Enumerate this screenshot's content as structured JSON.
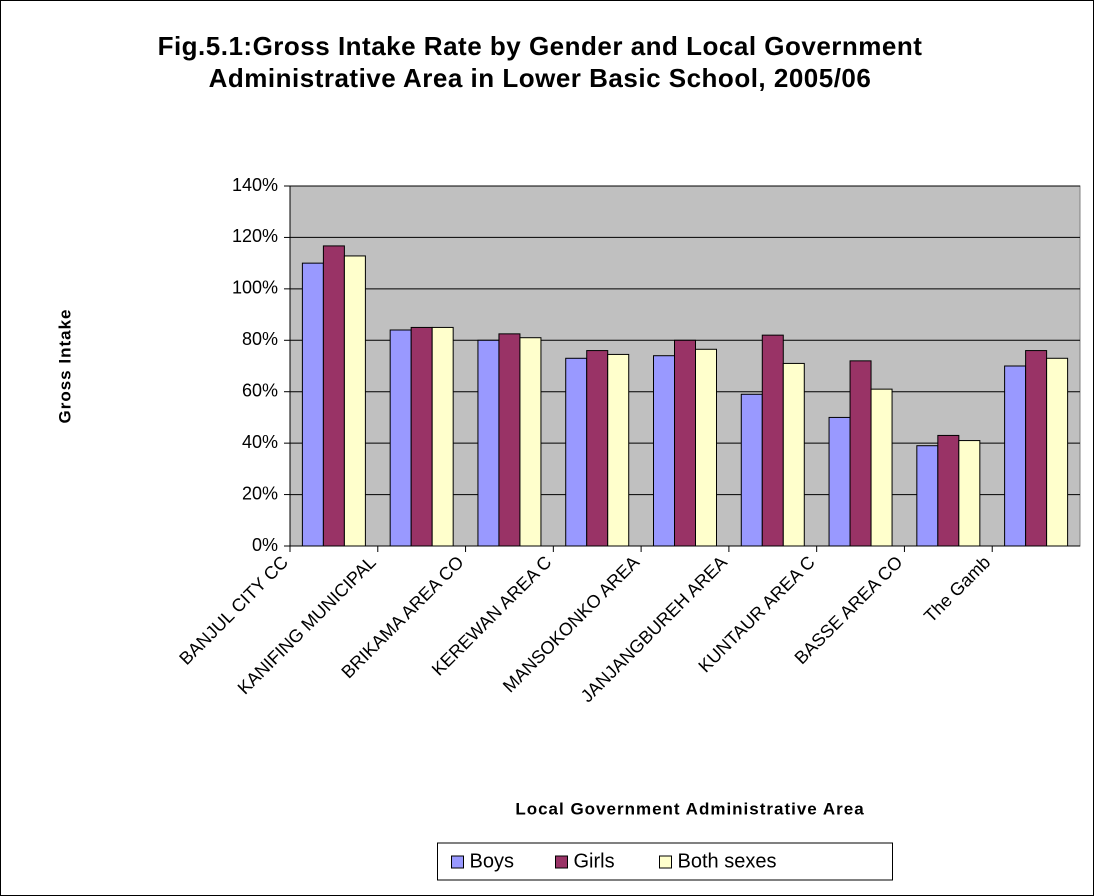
{
  "chart_data": {
    "type": "bar",
    "title": "Fig.5.1:Gross Intake Rate by Gender and Local Government Administrative Area in Lower Basic School, 2005/06",
    "x_label": "Local Government Administrative Area",
    "y_label": "Gross Intake",
    "categories": [
      "BANJUL CITY CC",
      "KANIFING MUNICIPAL",
      "BRIKAMA AREA CO",
      "KEREWAN AREA C",
      "MANSOKONKO AREA",
      "JANJANGBUREH AREA",
      "KUNTAUR AREA C",
      "BASSE AREA CO",
      "The Gamb"
    ],
    "series": [
      {
        "name": "Boys",
        "color": "#9999ff",
        "values": [
          110,
          84,
          80,
          73,
          74,
          59,
          50,
          39,
          70
        ]
      },
      {
        "name": "Girls",
        "color": "#993366",
        "values": [
          116.7,
          85,
          82.5,
          76,
          80,
          82,
          72,
          43,
          76
        ]
      },
      {
        "name": "Both sexes",
        "color": "#ffffcc",
        "values": [
          112.8,
          85,
          81,
          74.5,
          76.5,
          71,
          61,
          41,
          73
        ]
      }
    ],
    "ylim": [
      0,
      140
    ],
    "yticks": [
      {
        "value": 0,
        "label": "0%"
      },
      {
        "value": 20,
        "label": "20%"
      },
      {
        "value": 40,
        "label": "40%"
      },
      {
        "value": 60,
        "label": "60%"
      },
      {
        "value": 80,
        "label": "80%"
      },
      {
        "value": 100,
        "label": "100%"
      },
      {
        "value": 120,
        "label": "120%"
      },
      {
        "value": 140,
        "label": "140%"
      }
    ],
    "grid": true,
    "plot_background": "#c0c0c0",
    "legend": "bottom"
  }
}
